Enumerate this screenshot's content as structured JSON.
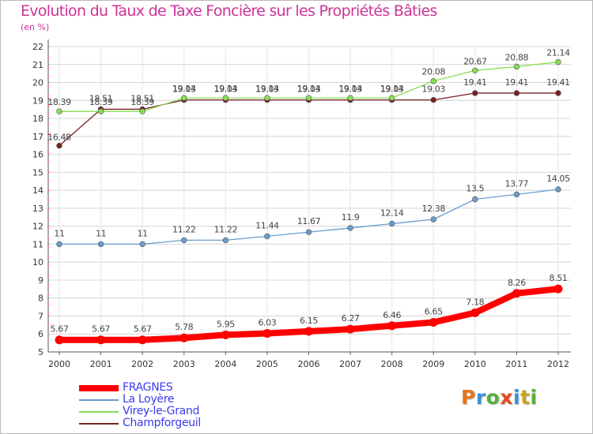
{
  "header": {
    "title": "Evolution du Taux de Taxe Foncière sur les Propriétés Bâties",
    "unit": "(en %)"
  },
  "brand": {
    "name": "Proxiti",
    "letter_colors": [
      "#e8731a",
      "#3c8fd6",
      "#5aaf3c",
      "#e84a1a",
      "#3c8fd6",
      "#c9a21a",
      "#5aaf3c"
    ]
  },
  "chart_data": {
    "type": "line",
    "title": "Evolution du Taux de Taxe Foncière sur les Propriétés Bâties",
    "ylabel": "(en %)",
    "xlabel": "",
    "x": [
      "2000",
      "2001",
      "2002",
      "2003",
      "2004",
      "2005",
      "2006",
      "2007",
      "2008",
      "2009",
      "2010",
      "2011",
      "2012"
    ],
    "ylim": [
      5,
      22
    ],
    "yticks": [
      "5",
      "6",
      "7",
      "8",
      "9",
      "10",
      "11",
      "12",
      "13",
      "14",
      "15",
      "16",
      "17",
      "18",
      "19",
      "20",
      "21",
      "22"
    ],
    "legend_position": "bottom-left",
    "series": [
      {
        "name": "FRAGNES",
        "color": "#ff0000",
        "values": [
          5.67,
          5.67,
          5.67,
          5.78,
          5.95,
          6.03,
          6.15,
          6.27,
          6.46,
          6.65,
          7.18,
          8.26,
          8.51
        ],
        "labels": [
          "5.67",
          "5.67",
          "5.67",
          "5.78",
          "5.95",
          "6.03",
          "6.15",
          "6.27",
          "6.46",
          "6.65",
          "7.18",
          "8.26",
          "8.51"
        ]
      },
      {
        "name": "La Loyère",
        "color": "#6a9ccc",
        "values": [
          11,
          11,
          11,
          11.22,
          11.22,
          11.44,
          11.67,
          11.9,
          12.14,
          12.38,
          13.5,
          13.77,
          14.05
        ],
        "labels": [
          "11",
          "11",
          "11",
          "11.22",
          "11.22",
          "11.44",
          "11.67",
          "11.9",
          "12.14",
          "12.38",
          "13.5",
          "13.77",
          "14.05"
        ]
      },
      {
        "name": "Virey-le-Grand",
        "color": "#88dd55",
        "values": [
          18.39,
          18.39,
          18.39,
          19.14,
          19.14,
          19.14,
          19.14,
          19.14,
          19.14,
          20.08,
          20.67,
          20.88,
          21.14
        ],
        "labels": [
          "18.39",
          "18.39",
          "18.39",
          "19.14",
          "19.14",
          "19.14",
          "19.14",
          "19.14",
          "19.14",
          "20.08",
          "20.67",
          "20.88",
          "21.14"
        ]
      },
      {
        "name": "Champforgeuil",
        "color": "#772222",
        "values": [
          16.48,
          18.51,
          18.51,
          19.03,
          19.03,
          19.03,
          19.03,
          19.03,
          19.03,
          19.03,
          19.41,
          19.41,
          19.41
        ],
        "labels": [
          "16.48",
          "18.51",
          "18.51",
          "19.03",
          "19.03",
          "19.03",
          "19.03",
          "19.03",
          "19.03",
          "19.03",
          "19.41",
          "19.41",
          "19.41"
        ]
      }
    ]
  }
}
